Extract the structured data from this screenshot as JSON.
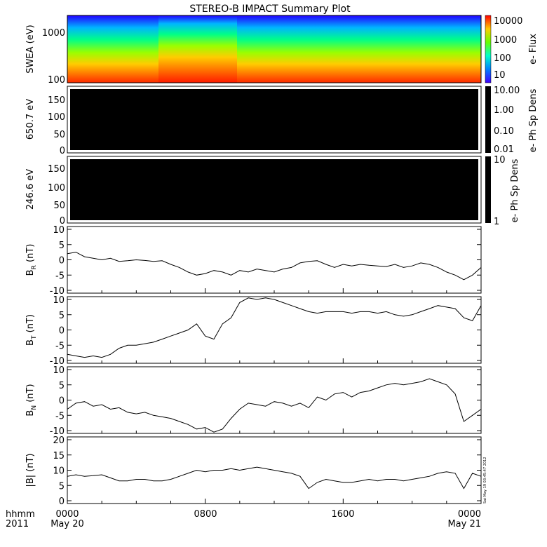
{
  "title": "STEREO-B IMPACT Summary Plot",
  "stamp": "Sat May 19 03:45:47 2012",
  "time_axis": {
    "row1_labels": [
      "hhmm",
      "0000",
      "0800",
      "1600",
      "0000"
    ],
    "row2_labels": [
      "2011",
      "May 20",
      "May 21"
    ]
  },
  "colors": {
    "line": "#000000",
    "background": "#ffffff",
    "spectrogram_fill": "#000000"
  },
  "chart_data": [
    {
      "type": "heatmap",
      "panel": "swea",
      "ylabel": "SWEA (eV)",
      "yscale": "log",
      "yticks": [
        "1000",
        "100"
      ],
      "colorbar_label": "e- Flux",
      "colorbar_ticks": [
        "10000",
        "1000",
        "100",
        "10"
      ],
      "colormap": [
        "#0000ff",
        "#00ffff",
        "#00ff00",
        "#ffff00",
        "#ff0000"
      ],
      "x": [
        "0000",
        "0200",
        "0400",
        "0600",
        "0800",
        "1000",
        "1200",
        "1400",
        "1600",
        "1800",
        "2000",
        "2200",
        "0000"
      ],
      "energy_levels_log10": [
        2.0,
        2.2,
        2.4,
        2.6,
        2.8,
        3.0,
        3.2
      ],
      "note_enhanced_interval": [
        "0430",
        "0930"
      ]
    },
    {
      "type": "heatmap",
      "panel": "pad-650",
      "ylabel": "650.7 eV",
      "yticks": [
        "0",
        "50",
        "100",
        "150"
      ],
      "ylim": [
        0,
        180
      ],
      "colorbar_label": "e- Ph Sp Dens",
      "colorbar_ticks": [
        "10.00",
        "1.00",
        "0.10",
        "0.01"
      ],
      "fill": "black"
    },
    {
      "type": "heatmap",
      "panel": "pad-246",
      "ylabel": "246.6 eV",
      "yticks": [
        "0",
        "50",
        "100",
        "150"
      ],
      "ylim": [
        0,
        180
      ],
      "colorbar_label": "e- Ph Sp Dens",
      "colorbar_ticks": [
        "10",
        "1"
      ],
      "fill": "black"
    },
    {
      "type": "line",
      "panel": "br",
      "ylabel_main": "B",
      "ylabel_sub": "R",
      "ylabel_unit": "(nT)",
      "yticks": [
        "10",
        "5",
        "0",
        "-5",
        "-10"
      ],
      "ylim": [
        -10,
        10
      ],
      "x": [
        0,
        0.5,
        1,
        1.5,
        2,
        2.5,
        3,
        3.5,
        4,
        4.5,
        5,
        5.5,
        6,
        6.5,
        7,
        7.5,
        8,
        8.5,
        9,
        9.5,
        10,
        10.5,
        11,
        11.5,
        12,
        12.5,
        13,
        13.5,
        14,
        14.5,
        15,
        15.5,
        16,
        16.5,
        17,
        17.5,
        18,
        18.5,
        19,
        19.5,
        20,
        20.5,
        21,
        21.5,
        22,
        22.5,
        23,
        23.5,
        24
      ],
      "values": [
        2,
        2.5,
        1,
        0.5,
        0,
        0.5,
        -0.5,
        -0.3,
        0,
        -0.2,
        -0.5,
        -0.3,
        -1.5,
        -2.5,
        -4,
        -5,
        -4.5,
        -3.5,
        -4,
        -5,
        -3.5,
        -4,
        -3,
        -3.5,
        -4,
        -3,
        -2.5,
        -1,
        -0.5,
        -0.3,
        -1.5,
        -2.5,
        -1.5,
        -2,
        -1.5,
        -1.8,
        -2,
        -2.2,
        -1.5,
        -2.5,
        -2,
        -1,
        -1.5,
        -2.5,
        -4,
        -5,
        -6.5,
        -5,
        -2.5
      ]
    },
    {
      "type": "line",
      "panel": "bt",
      "ylabel_main": "B",
      "ylabel_sub": "T",
      "ylabel_unit": "(nT)",
      "yticks": [
        "10",
        "5",
        "0",
        "-5",
        "-10"
      ],
      "ylim": [
        -10,
        10
      ],
      "x": [
        0,
        0.5,
        1,
        1.5,
        2,
        2.5,
        3,
        3.5,
        4,
        4.5,
        5,
        5.5,
        6,
        6.5,
        7,
        7.5,
        8,
        8.5,
        9,
        9.5,
        10,
        10.5,
        11,
        11.5,
        12,
        12.5,
        13,
        13.5,
        14,
        14.5,
        15,
        15.5,
        16,
        16.5,
        17,
        17.5,
        18,
        18.5,
        19,
        19.5,
        20,
        20.5,
        21,
        21.5,
        22,
        22.5,
        23,
        23.5,
        24
      ],
      "values": [
        -8,
        -8.5,
        -9,
        -8.5,
        -9,
        -8,
        -6,
        -5,
        -5,
        -4.5,
        -4,
        -3,
        -2,
        -1,
        0,
        2,
        -2,
        -3,
        2,
        4,
        9,
        10.5,
        10,
        10.5,
        10,
        9,
        8,
        7,
        6,
        5.5,
        6,
        6,
        6,
        5.5,
        6,
        6,
        5.5,
        6,
        5,
        4.5,
        5,
        6,
        7,
        8,
        7.5,
        7,
        4,
        3,
        8
      ]
    },
    {
      "type": "line",
      "panel": "bn",
      "ylabel_main": "B",
      "ylabel_sub": "N",
      "ylabel_unit": "(nT)",
      "yticks": [
        "10",
        "5",
        "0",
        "-5",
        "-10"
      ],
      "ylim": [
        -10,
        10
      ],
      "x": [
        0,
        0.5,
        1,
        1.5,
        2,
        2.5,
        3,
        3.5,
        4,
        4.5,
        5,
        5.5,
        6,
        6.5,
        7,
        7.5,
        8,
        8.5,
        9,
        9.5,
        10,
        10.5,
        11,
        11.5,
        12,
        12.5,
        13,
        13.5,
        14,
        14.5,
        15,
        15.5,
        16,
        16.5,
        17,
        17.5,
        18,
        18.5,
        19,
        19.5,
        20,
        20.5,
        21,
        21.5,
        22,
        22.5,
        23,
        23.5,
        24
      ],
      "values": [
        -3,
        -1,
        -0.5,
        -2,
        -1.5,
        -3,
        -2.5,
        -4,
        -4.5,
        -4,
        -5,
        -5.5,
        -6,
        -7,
        -8,
        -9.5,
        -9,
        -10.5,
        -9.5,
        -6,
        -3,
        -1,
        -1.5,
        -2,
        -0.5,
        -1,
        -2,
        -1,
        -2.5,
        1,
        0,
        2,
        2.5,
        1,
        2.5,
        3,
        4,
        5,
        5.5,
        5,
        5.5,
        6,
        7,
        6,
        5,
        2,
        -7,
        -5,
        -3
      ]
    },
    {
      "type": "line",
      "panel": "bmag",
      "ylabel": "|B| (nT)",
      "yticks": [
        "20",
        "15",
        "10",
        "5",
        "0"
      ],
      "ylim": [
        0,
        20
      ],
      "x": [
        0,
        0.5,
        1,
        1.5,
        2,
        2.5,
        3,
        3.5,
        4,
        4.5,
        5,
        5.5,
        6,
        6.5,
        7,
        7.5,
        8,
        8.5,
        9,
        9.5,
        10,
        10.5,
        11,
        11.5,
        12,
        12.5,
        13,
        13.5,
        14,
        14.5,
        15,
        15.5,
        16,
        16.5,
        17,
        17.5,
        18,
        18.5,
        19,
        19.5,
        20,
        20.5,
        21,
        21.5,
        22,
        22.5,
        23,
        23.5,
        24
      ],
      "values": [
        8,
        8.5,
        8,
        8.2,
        8.5,
        7.5,
        6.5,
        6.5,
        7,
        7,
        6.5,
        6.5,
        7,
        8,
        9,
        10,
        9.5,
        10,
        10,
        10.5,
        10,
        10.5,
        11,
        10.5,
        10,
        9.5,
        9,
        8,
        4,
        6,
        7,
        6.5,
        6,
        6,
        6.5,
        7,
        6.5,
        7,
        7,
        6.5,
        7,
        7.5,
        8,
        9,
        9.5,
        9,
        4,
        9,
        8
      ]
    }
  ]
}
